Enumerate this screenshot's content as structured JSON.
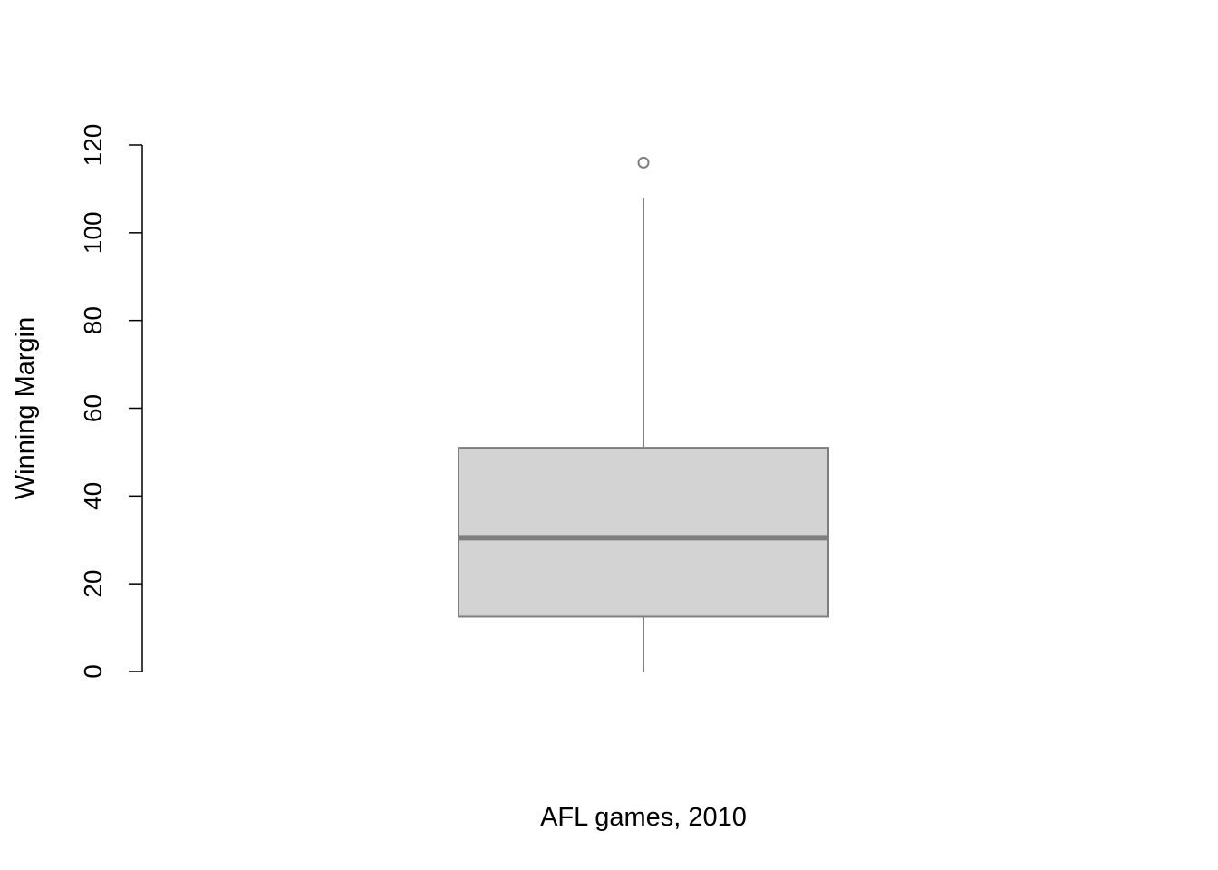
{
  "chart_data": {
    "type": "box",
    "xlabel": "AFL games, 2010",
    "ylabel": "Winning Margin",
    "ylim": [
      0,
      120
    ],
    "yticks": [
      "0",
      "20",
      "40",
      "60",
      "80",
      "100",
      "120"
    ],
    "grid": false,
    "legend": "none",
    "series": [
      {
        "whisker_low": 0,
        "q1": 12.5,
        "median": 30.5,
        "q3": 51,
        "whisker_high": 108,
        "outliers": [
          116
        ]
      }
    ],
    "colors": {
      "box_fill": "#d3d3d3",
      "box_border": "#7f7f7f",
      "axis": "#000000"
    }
  }
}
